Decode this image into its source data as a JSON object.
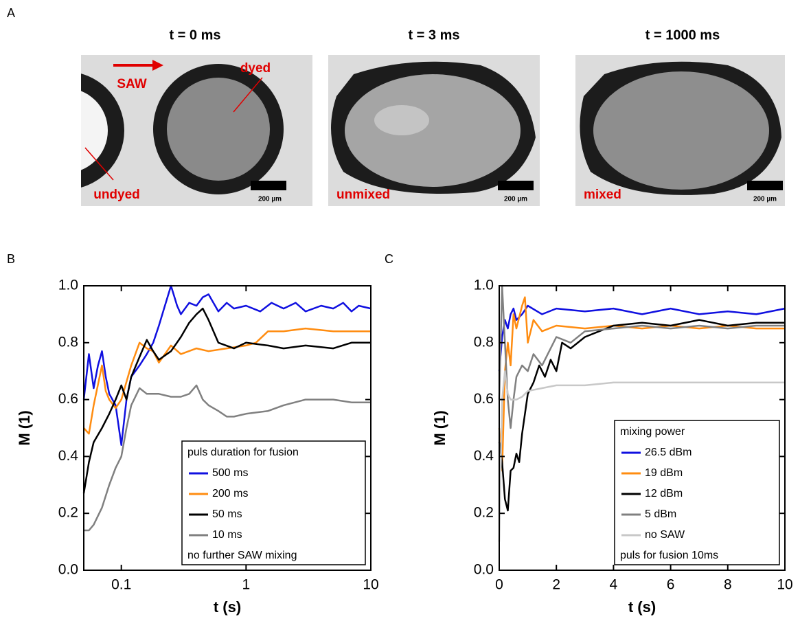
{
  "panel_a": {
    "label": "A",
    "images": [
      {
        "title": "t = 0 ms",
        "annotations": [
          "SAW",
          "dyed",
          "undyed"
        ],
        "scale_bar": "200 µm"
      },
      {
        "title": "t = 3 ms",
        "annotations": [
          "unmixed"
        ],
        "scale_bar": "200 µm"
      },
      {
        "title": "t = 1000 ms",
        "annotations": [
          "mixed"
        ],
        "scale_bar": "200 µm"
      }
    ]
  },
  "chart_data": [
    {
      "type": "line",
      "panel": "B",
      "xlabel": "t (s)",
      "ylabel": "M (1)",
      "xlog": true,
      "xlim": [
        0.05,
        10
      ],
      "xticks": [
        0.1,
        1,
        10
      ],
      "ylim": [
        0,
        1
      ],
      "yticks": [
        {
          "value": 0,
          "label": "0.0"
        },
        0.2,
        0.4,
        0.6,
        0.8,
        {
          "value": 1,
          "label": "1.0"
        }
      ],
      "legend": "lower right",
      "legend_title": "puls duration for fusion",
      "legend_note": "no further SAW mixing",
      "series": [
        {
          "name": "500 ms",
          "color": "#1010e0",
          "x": [
            0.05,
            0.055,
            0.06,
            0.065,
            0.07,
            0.075,
            0.08,
            0.09,
            0.1,
            0.11,
            0.12,
            0.14,
            0.16,
            0.18,
            0.2,
            0.22,
            0.25,
            0.28,
            0.3,
            0.35,
            0.4,
            0.45,
            0.5,
            0.6,
            0.7,
            0.8,
            1,
            1.3,
            1.6,
            2,
            2.5,
            3,
            4,
            5,
            6,
            7,
            8,
            10
          ],
          "values": [
            0.6,
            0.76,
            0.64,
            0.72,
            0.77,
            0.68,
            0.62,
            0.58,
            0.44,
            0.6,
            0.68,
            0.72,
            0.76,
            0.8,
            0.86,
            0.92,
            1.0,
            0.93,
            0.9,
            0.94,
            0.93,
            0.96,
            0.97,
            0.91,
            0.94,
            0.92,
            0.93,
            0.91,
            0.94,
            0.92,
            0.94,
            0.91,
            0.93,
            0.92,
            0.94,
            0.91,
            0.93,
            0.92
          ]
        },
        {
          "name": "200 ms",
          "color": "#ff8c10",
          "x": [
            0.05,
            0.055,
            0.06,
            0.07,
            0.075,
            0.08,
            0.09,
            0.1,
            0.12,
            0.14,
            0.16,
            0.18,
            0.2,
            0.25,
            0.3,
            0.4,
            0.5,
            0.7,
            1,
            1.2,
            1.5,
            2,
            3,
            5,
            7,
            10
          ],
          "values": [
            0.5,
            0.48,
            0.58,
            0.72,
            0.63,
            0.6,
            0.57,
            0.6,
            0.72,
            0.8,
            0.78,
            0.77,
            0.73,
            0.79,
            0.76,
            0.78,
            0.77,
            0.78,
            0.79,
            0.8,
            0.84,
            0.84,
            0.85,
            0.84,
            0.84,
            0.84
          ]
        },
        {
          "name": "50 ms",
          "color": "#000000",
          "x": [
            0.05,
            0.055,
            0.06,
            0.07,
            0.08,
            0.09,
            0.1,
            0.11,
            0.12,
            0.14,
            0.16,
            0.18,
            0.2,
            0.25,
            0.3,
            0.35,
            0.4,
            0.45,
            0.5,
            0.6,
            0.8,
            1,
            1.5,
            2,
            3,
            5,
            7,
            10
          ],
          "values": [
            0.27,
            0.38,
            0.45,
            0.5,
            0.55,
            0.6,
            0.65,
            0.6,
            0.68,
            0.75,
            0.81,
            0.77,
            0.74,
            0.77,
            0.82,
            0.87,
            0.9,
            0.92,
            0.88,
            0.8,
            0.78,
            0.8,
            0.79,
            0.78,
            0.79,
            0.78,
            0.8,
            0.8
          ]
        },
        {
          "name": "10 ms",
          "color": "#808080",
          "x": [
            0.05,
            0.055,
            0.06,
            0.07,
            0.08,
            0.09,
            0.1,
            0.11,
            0.12,
            0.14,
            0.16,
            0.2,
            0.25,
            0.3,
            0.35,
            0.4,
            0.45,
            0.5,
            0.6,
            0.7,
            0.8,
            1,
            1.5,
            2,
            3,
            5,
            7,
            10
          ],
          "values": [
            0.14,
            0.14,
            0.16,
            0.22,
            0.3,
            0.36,
            0.4,
            0.5,
            0.58,
            0.64,
            0.62,
            0.62,
            0.61,
            0.61,
            0.62,
            0.65,
            0.6,
            0.58,
            0.56,
            0.54,
            0.54,
            0.55,
            0.56,
            0.58,
            0.6,
            0.6,
            0.59,
            0.59
          ]
        }
      ]
    },
    {
      "type": "line",
      "panel": "C",
      "xlabel": "t (s)",
      "ylabel": "M (1)",
      "xlog": false,
      "xlim": [
        0,
        10
      ],
      "xticks": [
        0,
        2,
        4,
        6,
        8,
        10
      ],
      "ylim": [
        0,
        1
      ],
      "yticks": [
        {
          "value": 0,
          "label": "0.0"
        },
        0.2,
        0.4,
        0.6,
        0.8,
        {
          "value": 1,
          "label": "1.0"
        }
      ],
      "legend": "lower right",
      "legend_title": "mixing power",
      "legend_note": "puls for fusion 10ms",
      "series": [
        {
          "name": "26.5 dBm",
          "color": "#1010e0",
          "x": [
            0,
            0.1,
            0.2,
            0.3,
            0.4,
            0.5,
            0.6,
            0.8,
            1,
            1.5,
            2,
            3,
            4,
            5,
            6,
            7,
            8,
            9,
            10
          ],
          "values": [
            0.7,
            0.82,
            0.88,
            0.85,
            0.9,
            0.92,
            0.88,
            0.9,
            0.93,
            0.9,
            0.92,
            0.91,
            0.92,
            0.9,
            0.92,
            0.9,
            0.91,
            0.9,
            0.92
          ]
        },
        {
          "name": "19 dBm",
          "color": "#ff8c10",
          "x": [
            0,
            0.1,
            0.2,
            0.3,
            0.4,
            0.5,
            0.6,
            0.8,
            0.9,
            1,
            1.2,
            1.5,
            2,
            3,
            4,
            5,
            6,
            7,
            8,
            9,
            10
          ],
          "values": [
            0.5,
            0.35,
            0.7,
            0.8,
            0.72,
            0.9,
            0.85,
            0.93,
            0.96,
            0.8,
            0.88,
            0.84,
            0.86,
            0.85,
            0.86,
            0.85,
            0.86,
            0.85,
            0.86,
            0.85,
            0.85
          ]
        },
        {
          "name": "12 dBm",
          "color": "#000000",
          "x": [
            0,
            0.1,
            0.2,
            0.3,
            0.4,
            0.5,
            0.6,
            0.7,
            0.8,
            1,
            1.2,
            1.4,
            1.6,
            1.8,
            2,
            2.2,
            2.5,
            3,
            3.5,
            4,
            5,
            6,
            7,
            8,
            9,
            10
          ],
          "values": [
            0.45,
            0.38,
            0.25,
            0.21,
            0.35,
            0.36,
            0.41,
            0.38,
            0.48,
            0.62,
            0.66,
            0.72,
            0.68,
            0.74,
            0.7,
            0.8,
            0.78,
            0.82,
            0.84,
            0.86,
            0.87,
            0.86,
            0.88,
            0.86,
            0.87,
            0.87
          ]
        },
        {
          "name": "5 dBm",
          "color": "#808080",
          "x": [
            0,
            0.1,
            0.2,
            0.3,
            0.4,
            0.5,
            0.6,
            0.8,
            1,
            1.2,
            1.5,
            2,
            2.5,
            3,
            4,
            5,
            6,
            7,
            8,
            9,
            10
          ],
          "values": [
            0.6,
            1.0,
            0.8,
            0.6,
            0.5,
            0.6,
            0.68,
            0.72,
            0.7,
            0.76,
            0.72,
            0.82,
            0.8,
            0.84,
            0.85,
            0.86,
            0.85,
            0.86,
            0.85,
            0.86,
            0.86
          ]
        },
        {
          "name": "no SAW",
          "color": "#c8c8c8",
          "x": [
            0,
            0.1,
            0.2,
            0.3,
            0.4,
            0.6,
            0.8,
            1,
            1.5,
            2,
            3,
            4,
            5,
            6,
            7,
            8,
            9,
            10
          ],
          "values": [
            0.1,
            0.6,
            0.7,
            0.62,
            0.6,
            0.6,
            0.61,
            0.63,
            0.64,
            0.65,
            0.65,
            0.66,
            0.66,
            0.66,
            0.66,
            0.66,
            0.66,
            0.66
          ]
        }
      ]
    }
  ]
}
